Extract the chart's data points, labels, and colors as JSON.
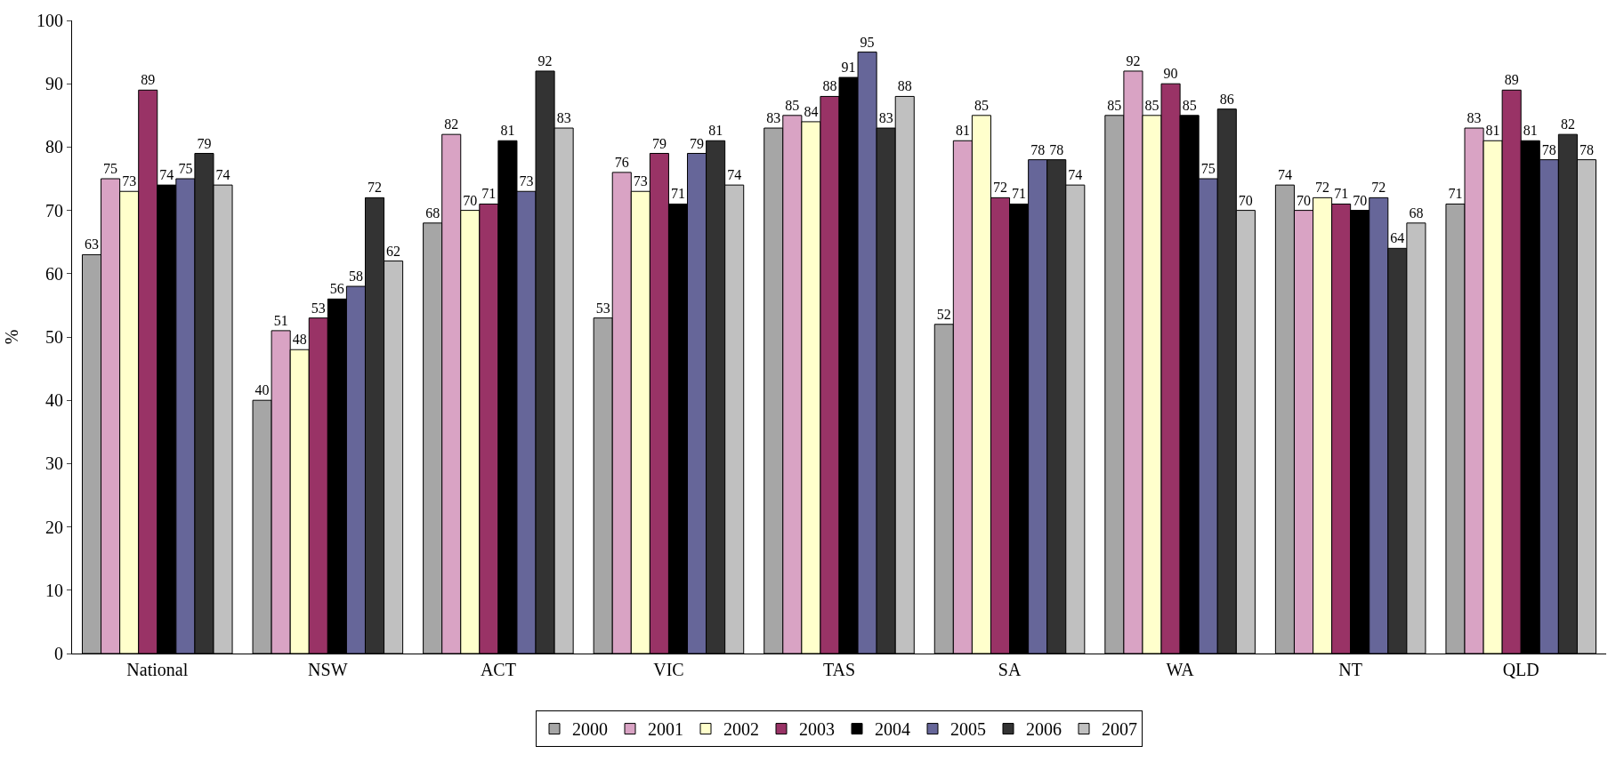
{
  "chart_data": {
    "type": "bar",
    "ylabel": "%",
    "categories": [
      "National",
      "NSW",
      "ACT",
      "VIC",
      "TAS",
      "SA",
      "WA",
      "NT",
      "QLD"
    ],
    "series": [
      {
        "name": "2000",
        "color": "#a6a6a6",
        "values": [
          63,
          40,
          68,
          53,
          83,
          52,
          85,
          74,
          71
        ]
      },
      {
        "name": "2001",
        "color": "#d9a3c4",
        "values": [
          75,
          51,
          82,
          76,
          85,
          81,
          92,
          70,
          83
        ]
      },
      {
        "name": "2002",
        "color": "#ffffcc",
        "values": [
          73,
          48,
          70,
          73,
          84,
          85,
          85,
          72,
          81
        ]
      },
      {
        "name": "2003",
        "color": "#993366",
        "values": [
          89,
          53,
          71,
          79,
          88,
          72,
          90,
          71,
          89
        ]
      },
      {
        "name": "2004",
        "color": "#000000",
        "values": [
          74,
          56,
          81,
          71,
          91,
          71,
          85,
          70,
          81
        ]
      },
      {
        "name": "2005",
        "color": "#666699",
        "values": [
          75,
          58,
          73,
          79,
          95,
          78,
          75,
          72,
          78
        ]
      },
      {
        "name": "2006",
        "color": "#333333",
        "values": [
          79,
          72,
          92,
          81,
          83,
          78,
          86,
          64,
          82
        ]
      },
      {
        "name": "2007",
        "color": "#c0c0c0",
        "values": [
          74,
          62,
          83,
          74,
          88,
          74,
          70,
          68,
          78
        ]
      }
    ],
    "ylim": [
      0,
      100
    ],
    "yticks": [
      0,
      10,
      20,
      30,
      40,
      50,
      60,
      70,
      80,
      90,
      100
    ],
    "legend": "bottom",
    "data_labels": true
  }
}
